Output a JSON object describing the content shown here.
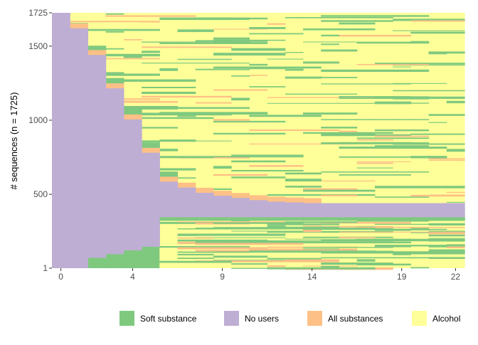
{
  "chart_data": {
    "type": "sequence-index",
    "title": "",
    "xlabel": "",
    "ylabel": "# sequences (n = 1725)",
    "n_sequences": 1725,
    "n_positions": 23,
    "x_ticks": [
      0,
      4,
      9,
      14,
      19,
      22
    ],
    "y_ticks": [
      1,
      500,
      1000,
      1500,
      1725
    ],
    "xlim": [
      0,
      22
    ],
    "ylim": [
      1,
      1725
    ],
    "legend_position": "bottom",
    "states": [
      {
        "name": "Soft substance",
        "color": "#7fc97f"
      },
      {
        "name": "No users",
        "color": "#beaed4"
      },
      {
        "name": "All substances",
        "color": "#fdc086"
      },
      {
        "name": "Alcohol",
        "color": "#ffff99"
      }
    ],
    "no_users_top_by_position": [
      1725,
      1620,
      1440,
      1215,
      1005,
      780,
      585,
      545,
      510,
      490,
      475,
      460,
      450,
      445,
      440,
      440,
      440,
      440,
      440,
      440,
      440,
      440,
      440
    ],
    "alcohol_share_upper_region": 0.72,
    "soft_share_upper_region": 0.22,
    "alcohol_share_lower_region": 0.62,
    "soft_share_lower_region": 0.3
  }
}
